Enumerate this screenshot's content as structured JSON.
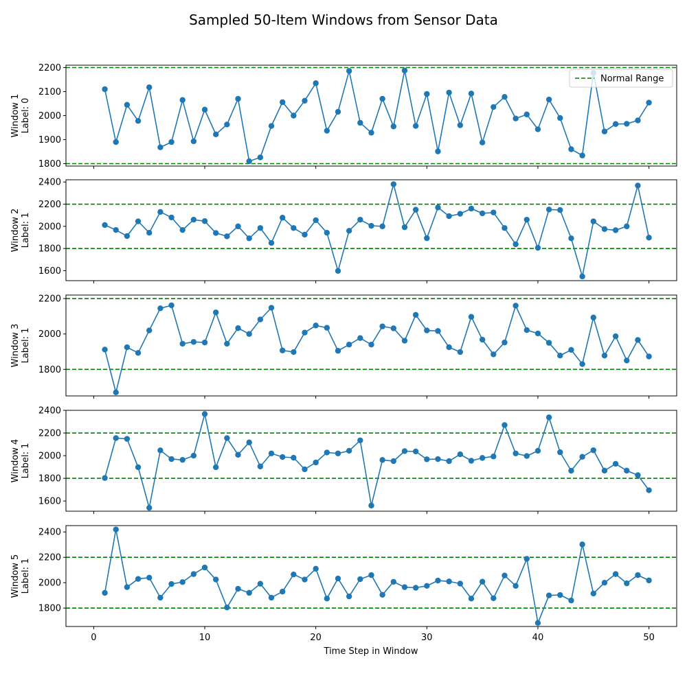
{
  "figure": {
    "title": "Sampled 50-Item Windows from Sensor Data",
    "xlabel": "Time Step in Window"
  },
  "chart_data": [
    {
      "type": "line",
      "ylabel_line1": "Window 1",
      "ylabel_line2": "Label: 0",
      "ylim": [
        1790,
        2210
      ],
      "yticks": [
        1800,
        1900,
        2000,
        2100,
        2200
      ],
      "xlim": [
        -2.5,
        52.5
      ],
      "xticks": [
        0,
        10,
        20,
        30,
        40,
        50
      ],
      "reference_lines": [
        1800,
        2200
      ],
      "legend": {
        "label": "Normal Range",
        "position": "top-right"
      },
      "x": [
        1,
        2,
        3,
        4,
        5,
        6,
        7,
        8,
        9,
        10,
        11,
        12,
        13,
        14,
        15,
        16,
        17,
        18,
        19,
        20,
        21,
        22,
        23,
        24,
        25,
        26,
        27,
        28,
        29,
        30,
        31,
        32,
        33,
        34,
        35,
        36,
        37,
        38,
        39,
        40,
        41,
        42,
        43,
        44,
        45,
        46,
        47,
        48,
        49,
        50
      ],
      "values": [
        2110,
        1890,
        2045,
        1978,
        2118,
        1868,
        1890,
        2065,
        1893,
        2025,
        1922,
        1963,
        2070,
        1810,
        1826,
        1957,
        2056,
        2000,
        2062,
        2135,
        1937,
        2016,
        2186,
        1970,
        1929,
        2070,
        1955,
        2188,
        1957,
        2090,
        1851,
        2096,
        1960,
        2092,
        1888,
        2036,
        2078,
        1988,
        2005,
        1943,
        2067,
        1990,
        1860,
        1834,
        2178,
        1934,
        1965,
        1966,
        1980,
        2054
      ]
    },
    {
      "type": "line",
      "ylabel_line1": "Window 2",
      "ylabel_line2": "Label: 1",
      "ylim": [
        1510,
        2420
      ],
      "yticks": [
        1600,
        1800,
        2000,
        2200,
        2400
      ],
      "xlim": [
        -2.5,
        52.5
      ],
      "xticks": [
        0,
        10,
        20,
        30,
        40,
        50
      ],
      "reference_lines": [
        1800,
        2200
      ],
      "x": [
        1,
        2,
        3,
        4,
        5,
        6,
        7,
        8,
        9,
        10,
        11,
        12,
        13,
        14,
        15,
        16,
        17,
        18,
        19,
        20,
        21,
        22,
        23,
        24,
        25,
        26,
        27,
        28,
        29,
        30,
        31,
        32,
        33,
        34,
        35,
        36,
        37,
        38,
        39,
        40,
        41,
        42,
        43,
        44,
        45,
        46,
        47,
        48,
        49,
        50
      ],
      "values": [
        2012,
        1967,
        1912,
        2045,
        1942,
        2130,
        2080,
        1967,
        2060,
        2047,
        1940,
        1910,
        2000,
        1892,
        1985,
        1850,
        2078,
        1985,
        1925,
        2055,
        1942,
        1598,
        1960,
        2060,
        2005,
        2000,
        2380,
        1992,
        2150,
        1893,
        2170,
        2092,
        2113,
        2160,
        2117,
        2125,
        1985,
        1838,
        2060,
        1806,
        2152,
        2147,
        1892,
        1548,
        2045,
        1975,
        1965,
        2000,
        2368,
        1898
      ]
    },
    {
      "type": "line",
      "ylabel_line1": "Window 3",
      "ylabel_line2": "Label: 1",
      "ylim": [
        1650,
        2220
      ],
      "yticks": [
        1800,
        2000,
        2200
      ],
      "xlim": [
        -2.5,
        52.5
      ],
      "xticks": [
        0,
        10,
        20,
        30,
        40,
        50
      ],
      "reference_lines": [
        1800,
        2200
      ],
      "x": [
        1,
        2,
        3,
        4,
        5,
        6,
        7,
        8,
        9,
        10,
        11,
        12,
        13,
        14,
        15,
        16,
        17,
        18,
        19,
        20,
        21,
        22,
        23,
        24,
        25,
        26,
        27,
        28,
        29,
        30,
        31,
        32,
        33,
        34,
        35,
        36,
        37,
        38,
        39,
        40,
        41,
        42,
        43,
        44,
        45,
        46,
        47,
        48,
        49,
        50
      ],
      "values": [
        1912,
        1670,
        1925,
        1893,
        2020,
        2145,
        2162,
        1945,
        1955,
        1952,
        2122,
        1945,
        2033,
        2000,
        2082,
        2148,
        1907,
        1898,
        2008,
        2048,
        2035,
        1905,
        1940,
        1977,
        1940,
        2043,
        2032,
        1962,
        2108,
        2020,
        2017,
        1925,
        1898,
        2097,
        1968,
        1885,
        1952,
        2160,
        2022,
        2003,
        1950,
        1878,
        1910,
        1830,
        2093,
        1878,
        1987,
        1850,
        1966,
        1873
      ]
    },
    {
      "type": "line",
      "ylabel_line1": "Window 4",
      "ylabel_line2": "Label: 1",
      "ylim": [
        1510,
        2400
      ],
      "yticks": [
        1600,
        1800,
        2000,
        2200,
        2400
      ],
      "xlim": [
        -2.5,
        52.5
      ],
      "xticks": [
        0,
        10,
        20,
        30,
        40,
        50
      ],
      "reference_lines": [
        1800,
        2200
      ],
      "x": [
        1,
        2,
        3,
        4,
        5,
        6,
        7,
        8,
        9,
        10,
        11,
        12,
        13,
        14,
        15,
        16,
        17,
        18,
        19,
        20,
        21,
        22,
        23,
        24,
        25,
        26,
        27,
        28,
        29,
        30,
        31,
        32,
        33,
        34,
        35,
        36,
        37,
        38,
        39,
        40,
        41,
        42,
        43,
        44,
        45,
        46,
        47,
        48,
        49,
        50
      ],
      "values": [
        1803,
        2155,
        2148,
        1898,
        1540,
        2047,
        1970,
        1963,
        2000,
        2368,
        1898,
        2155,
        2008,
        2117,
        1905,
        2020,
        1988,
        1982,
        1880,
        1940,
        2028,
        2020,
        2043,
        2135,
        1560,
        1962,
        1952,
        2040,
        2037,
        1968,
        1970,
        1952,
        2012,
        1955,
        1980,
        1993,
        2270,
        2020,
        1997,
        2043,
        2338,
        2030,
        1867,
        1990,
        2048,
        1868,
        1928,
        1868,
        1828,
        1695
      ]
    },
    {
      "type": "line",
      "ylabel_line1": "Window 5",
      "ylabel_line2": "Label: 1",
      "ylim": [
        1655,
        2450
      ],
      "yticks": [
        1800,
        2000,
        2200,
        2400
      ],
      "xlim": [
        -2.5,
        52.5
      ],
      "xticks": [
        0,
        10,
        20,
        30,
        40,
        50
      ],
      "reference_lines": [
        1800,
        2200
      ],
      "x": [
        1,
        2,
        3,
        4,
        5,
        6,
        7,
        8,
        9,
        10,
        11,
        12,
        13,
        14,
        15,
        16,
        17,
        18,
        19,
        20,
        21,
        22,
        23,
        24,
        25,
        26,
        27,
        28,
        29,
        30,
        31,
        32,
        33,
        34,
        35,
        36,
        37,
        38,
        39,
        40,
        41,
        42,
        43,
        44,
        45,
        46,
        47,
        48,
        49,
        50
      ],
      "values": [
        1920,
        2420,
        1965,
        2030,
        2040,
        1882,
        1990,
        2005,
        2068,
        2120,
        2025,
        1805,
        1952,
        1920,
        1992,
        1882,
        1930,
        2065,
        2025,
        2110,
        1875,
        2033,
        1892,
        2028,
        2060,
        1905,
        2007,
        1965,
        1960,
        1975,
        2017,
        2010,
        1993,
        1875,
        2008,
        1878,
        2057,
        1975,
        2188,
        1683,
        1900,
        1903,
        1860,
        2302,
        1915,
        2000,
        2068,
        1995,
        2060,
        2018
      ]
    }
  ],
  "style": {
    "line_color": "#1f77b4",
    "reference_color": "#008000",
    "axis_color": "#000000"
  }
}
